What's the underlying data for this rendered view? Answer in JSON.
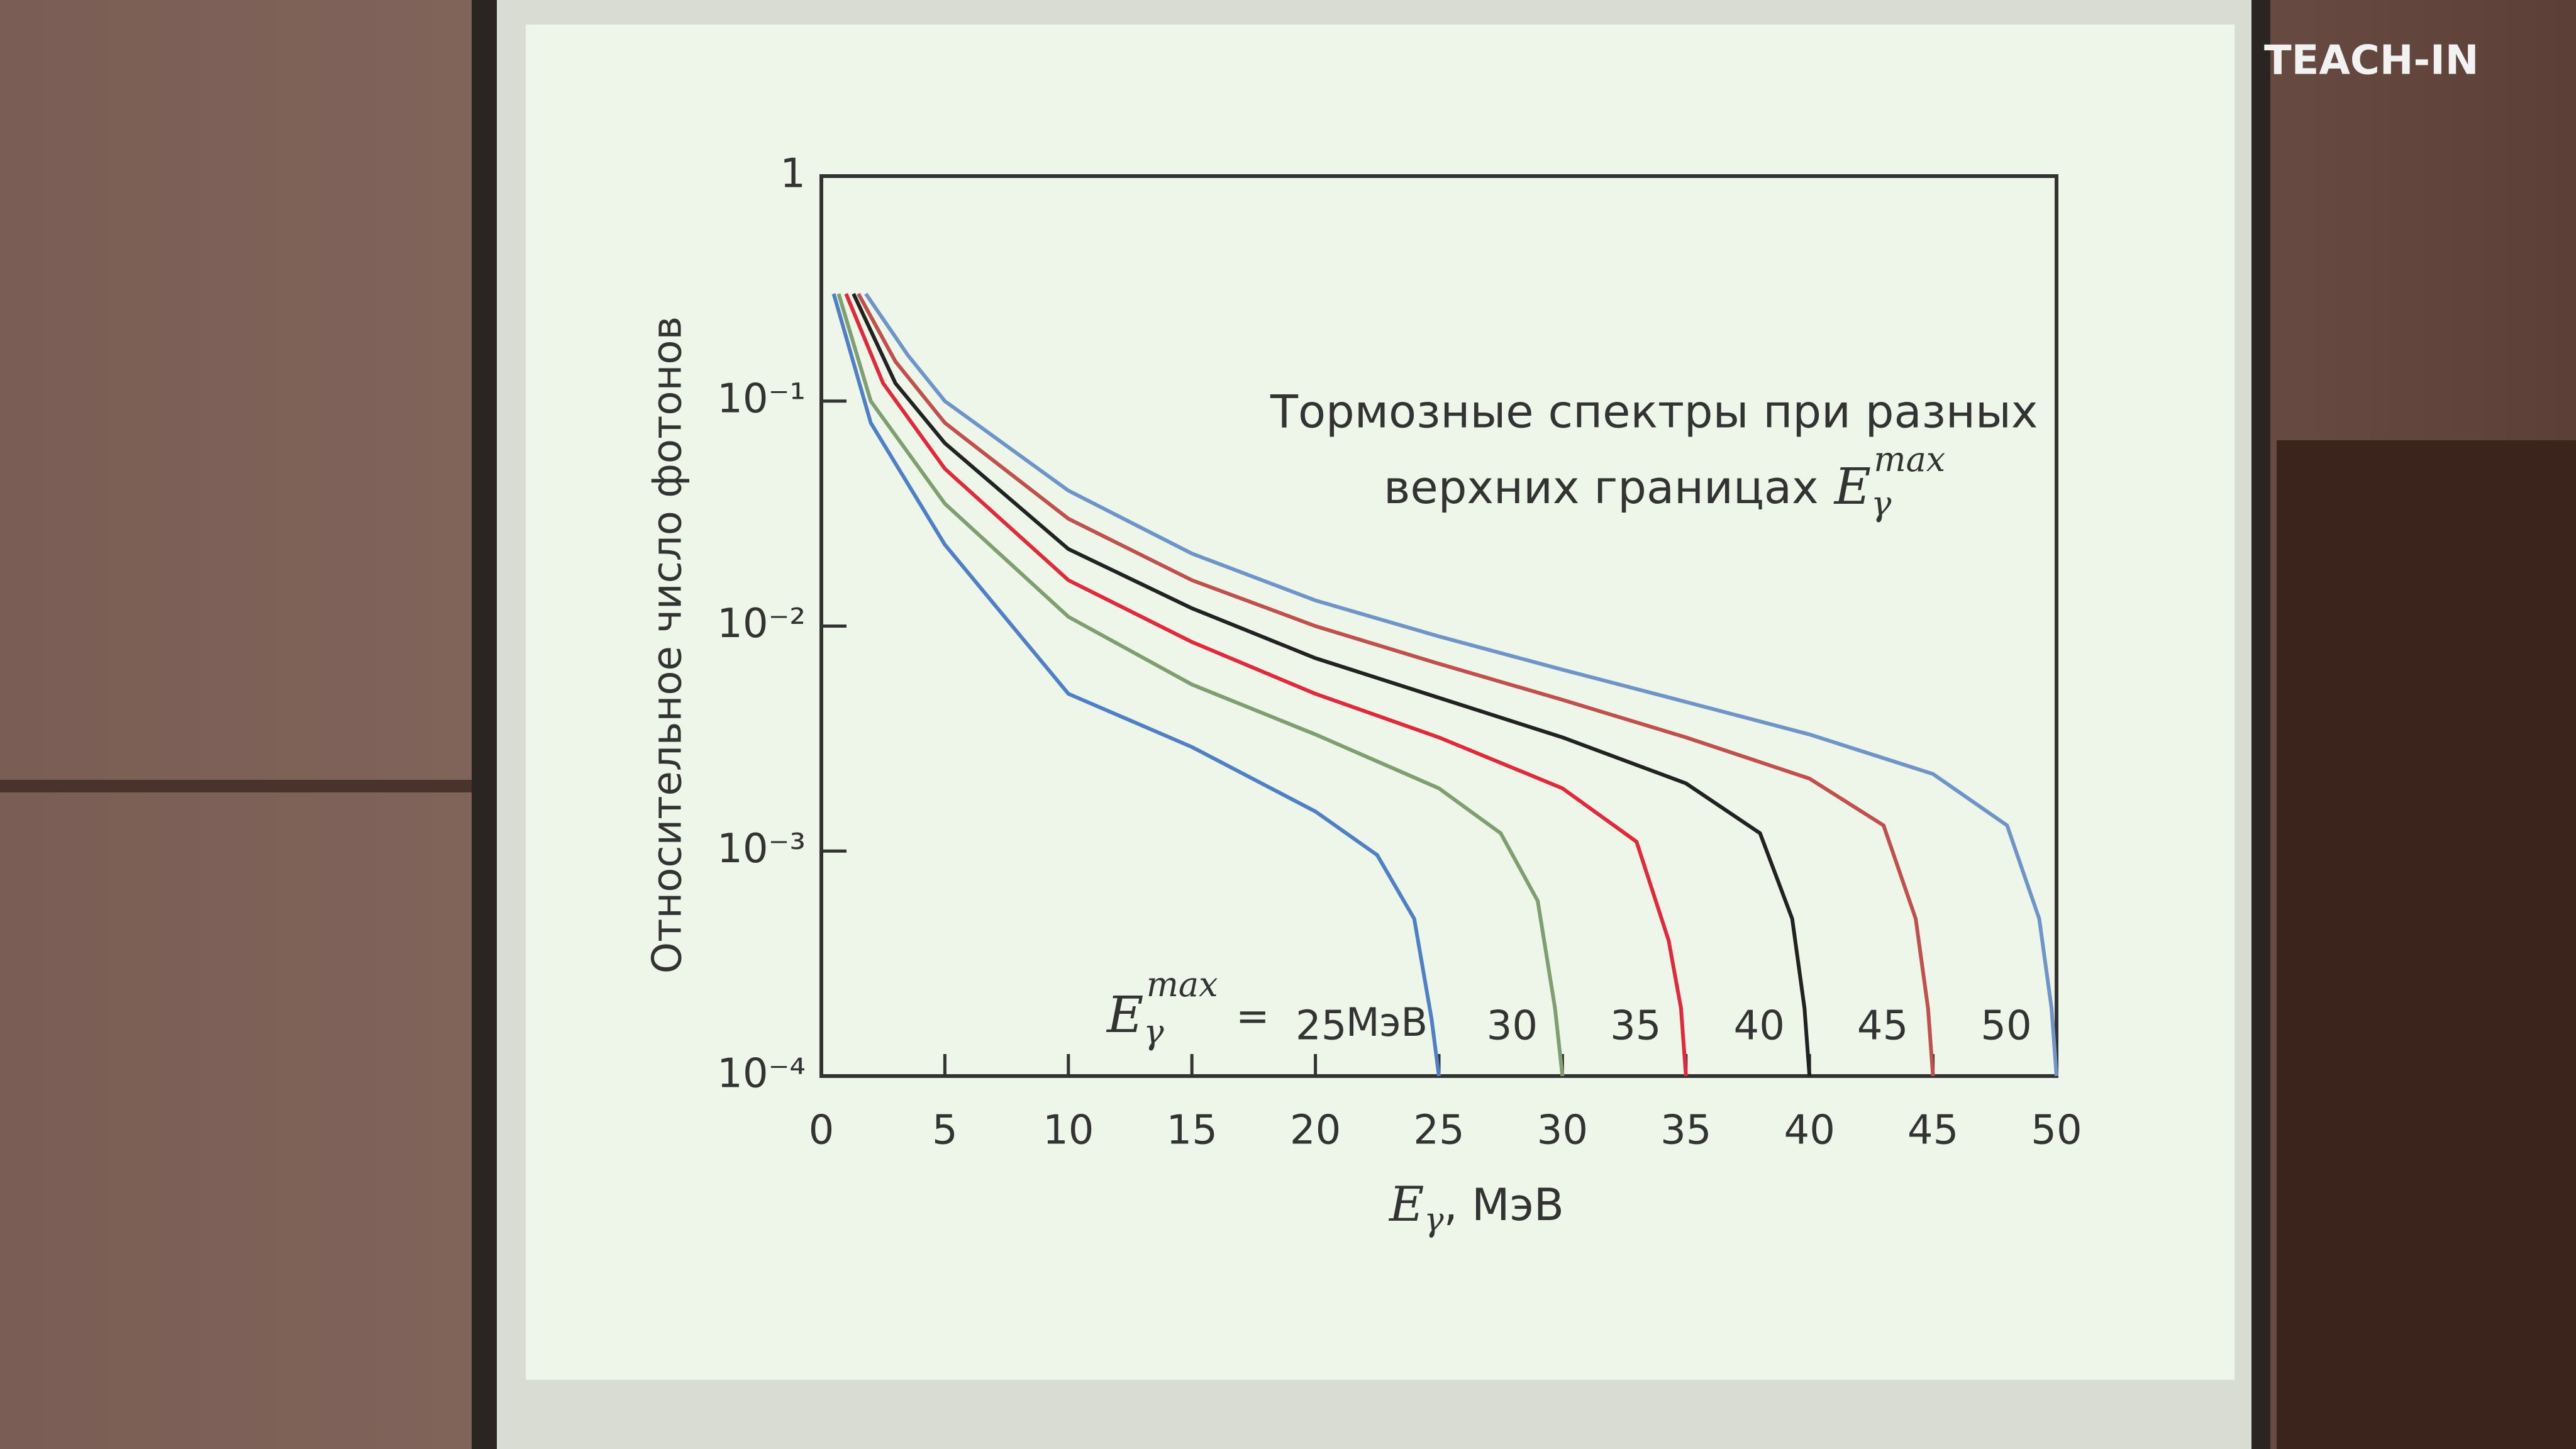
{
  "chart_data": {
    "type": "line",
    "watermark": "TEACH-IN",
    "ylabel": "Относительное число фотонов",
    "xlabel": {
      "symbol": "E",
      "sub": "γ",
      "text": ", МэВ"
    },
    "annotation": {
      "line1": "Тормозные спектры при разных",
      "line2": "верхних границах",
      "symbol": "E",
      "sub": "γ",
      "sup": "max"
    },
    "curve_label": {
      "symbol": "E",
      "sub": "γ",
      "sup": "max",
      "equals": "=",
      "unit": "МэВ"
    },
    "log_y": true,
    "xlim": [
      0,
      50
    ],
    "xticks": [
      0,
      5,
      10,
      15,
      20,
      25,
      30,
      35,
      40,
      45,
      50
    ],
    "ylim": [
      0.0001,
      1
    ],
    "yticks": [
      {
        "value": 0.0001,
        "label": "10⁻⁴"
      },
      {
        "value": 0.001,
        "label": "10⁻³"
      },
      {
        "value": 0.01,
        "label": "10⁻²"
      },
      {
        "value": 0.1,
        "label": "10⁻¹"
      },
      1
    ],
    "series": [
      {
        "name": "25",
        "color": "#4f7fc4",
        "x": [
          0.5,
          2,
          5,
          10,
          15,
          20,
          22.5,
          24,
          24.7,
          25
        ],
        "values": [
          0.3,
          0.08,
          0.023,
          0.005,
          0.0029,
          0.0015,
          0.00096,
          0.0005,
          0.00018,
          0.0001
        ]
      },
      {
        "name": "30",
        "color": "#7f9f70",
        "x": [
          0.7,
          2,
          5,
          10,
          15,
          20,
          25,
          27.5,
          29,
          29.7,
          30
        ],
        "values": [
          0.3,
          0.1,
          0.035,
          0.011,
          0.0055,
          0.0033,
          0.0019,
          0.0012,
          0.0006,
          0.0002,
          0.0001
        ]
      },
      {
        "name": "35",
        "color": "#e02a3c",
        "x": [
          1,
          2.5,
          5,
          10,
          15,
          20,
          25,
          30,
          33,
          34.3,
          34.8,
          35
        ],
        "values": [
          0.3,
          0.12,
          0.05,
          0.016,
          0.0085,
          0.005,
          0.0032,
          0.0019,
          0.0011,
          0.0004,
          0.0002,
          0.0001
        ]
      },
      {
        "name": "40",
        "color": "#222222",
        "x": [
          1.3,
          3,
          5,
          10,
          15,
          20,
          25,
          30,
          35,
          38,
          39.3,
          39.8,
          40
        ],
        "values": [
          0.3,
          0.12,
          0.065,
          0.022,
          0.012,
          0.0072,
          0.0048,
          0.0032,
          0.002,
          0.0012,
          0.0005,
          0.0002,
          0.0001
        ]
      },
      {
        "name": "45",
        "color": "#c0504d",
        "x": [
          1.5,
          3,
          5,
          10,
          15,
          20,
          25,
          30,
          35,
          40,
          43,
          44.3,
          44.8,
          45
        ],
        "values": [
          0.3,
          0.15,
          0.08,
          0.03,
          0.016,
          0.01,
          0.0068,
          0.0047,
          0.0032,
          0.0021,
          0.0013,
          0.0005,
          0.0002,
          0.0001
        ]
      },
      {
        "name": "50",
        "color": "#6f95c8",
        "x": [
          1.8,
          3.5,
          5,
          10,
          15,
          20,
          25,
          30,
          35,
          40,
          45,
          48,
          49.3,
          49.8,
          50
        ],
        "values": [
          0.3,
          0.16,
          0.1,
          0.04,
          0.021,
          0.013,
          0.009,
          0.0064,
          0.0046,
          0.0033,
          0.0022,
          0.0013,
          0.0005,
          0.0002,
          0.0001
        ]
      }
    ]
  }
}
